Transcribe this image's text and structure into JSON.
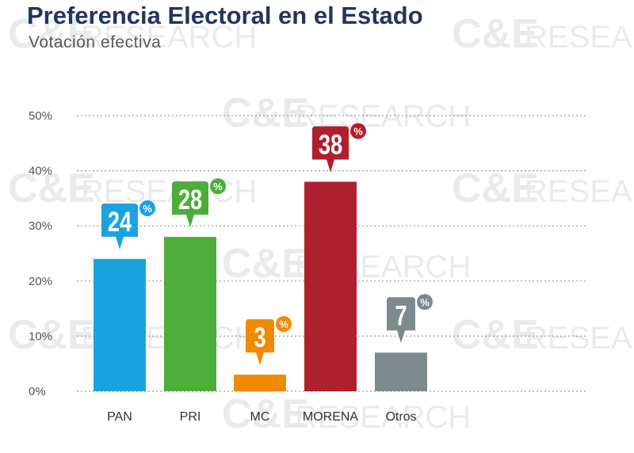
{
  "header": {
    "title": "Preferencia Electoral en el Estado",
    "subtitle": "Votación efectiva"
  },
  "watermark": {
    "brand": "C&E",
    "word": "RESEARCH"
  },
  "chart_data": {
    "type": "bar",
    "title": "Preferencia Electoral en el Estado",
    "subtitle": "Votación efectiva",
    "categories": [
      "PAN",
      "PRI",
      "MC",
      "MORENA",
      "Otros"
    ],
    "values": [
      24,
      28,
      3,
      38,
      7
    ],
    "colors": [
      "#1ba3e0",
      "#4cad38",
      "#f08a00",
      "#b01f2e",
      "#7c8a8e"
    ],
    "value_suffix": "%",
    "yticks": [
      "0%",
      "10%",
      "20%",
      "30%",
      "40%",
      "50%"
    ],
    "ylim": [
      0,
      50
    ],
    "grid": true,
    "legend": "none"
  }
}
